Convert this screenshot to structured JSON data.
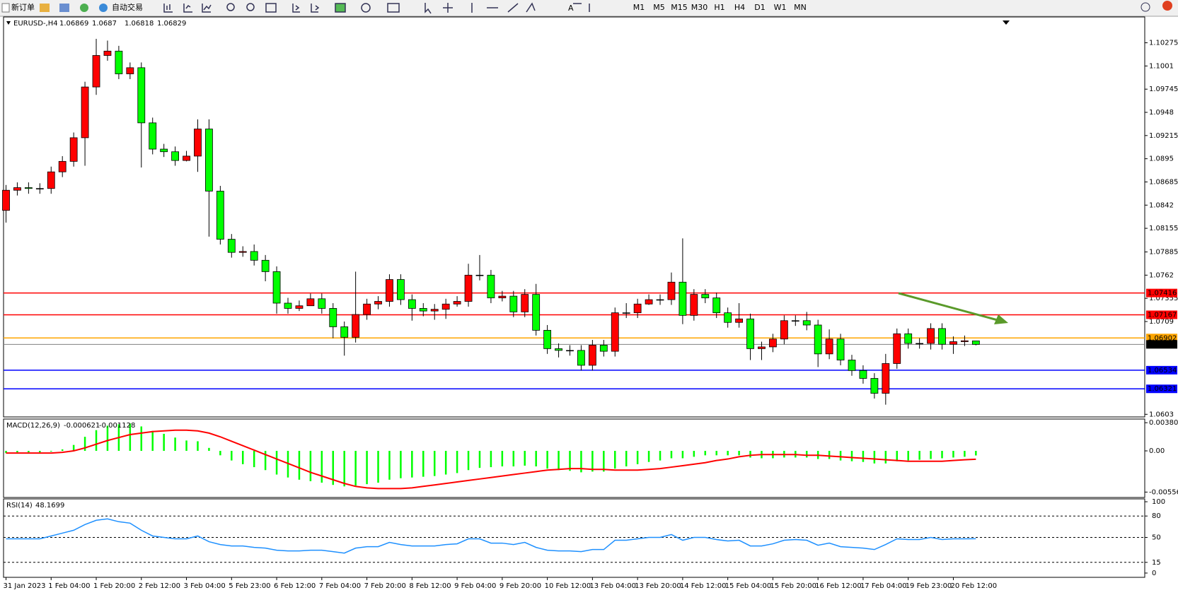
{
  "toolbar": {
    "buttons": [
      "新订单",
      "自动交易"
    ],
    "timeframes": [
      "M1",
      "M5",
      "M15",
      "M30",
      "H1",
      "H4",
      "D1",
      "W1",
      "MN"
    ]
  },
  "chart_data": [
    {
      "type": "candlestick",
      "title": "EURUSD-,H4",
      "categories": [
        "31 Jan 2023",
        null,
        null,
        null,
        "1 Feb 04:00",
        null,
        null,
        null,
        "1 Feb 20:00",
        null,
        null,
        null,
        "2 Feb 12:00",
        null,
        null,
        null,
        "3 Feb 04:00",
        null,
        null,
        null,
        "5 Feb 23:00",
        null,
        null,
        null,
        "6 Feb 12:00",
        null,
        null,
        null,
        "7 Feb 04:00",
        null,
        null,
        null,
        "7 Feb 20:00",
        null,
        null,
        null,
        "8 Feb 12:00",
        null,
        null,
        null,
        "9 Feb 04:00",
        null,
        null,
        null,
        "9 Feb 20:00",
        null,
        null,
        null,
        "10 Feb 12:00",
        null,
        null,
        null,
        "13 Feb 04:00",
        null,
        null,
        null,
        "13 Feb 20:00",
        null,
        null,
        null,
        "14 Feb 12:00",
        null,
        null,
        null,
        "15 Feb 04:00",
        null,
        null,
        null,
        "15 Feb 20:00",
        null,
        null,
        null,
        "16 Feb 12:00",
        null,
        null,
        null,
        "17 Feb 04:00",
        null,
        null,
        null,
        "19 Feb 23:00",
        null,
        null,
        null,
        "20 Feb 12:00",
        null,
        null
      ],
      "open": [
        1.0836,
        1.0859,
        1.0862,
        1.0861,
        1.0861,
        1.088,
        1.0892,
        1.0919,
        1.0977,
        1.1013,
        1.1018,
        1.0992,
        1.0999,
        1.0936,
        1.0906,
        1.0903,
        1.0893,
        1.0898,
        1.0929,
        1.0858,
        1.0803,
        1.0788,
        1.0789,
        1.0779,
        1.0766,
        1.073,
        1.0724,
        1.0727,
        1.0735,
        1.0724,
        1.0703,
        1.0691,
        1.0717,
        1.0729,
        1.0732,
        1.0757,
        1.0734,
        1.0724,
        1.0721,
        1.0723,
        1.0729,
        1.0732,
        1.0762,
        1.0762,
        1.0736,
        1.0738,
        1.072,
        1.074,
        1.0699,
        1.0678,
        1.0676,
        1.0676,
        1.0659,
        1.0682,
        1.0675,
        1.0719,
        1.0719,
        1.0729,
        1.0734,
        1.0734,
        1.0754,
        1.0716,
        1.074,
        1.0736,
        1.0719,
        1.0708,
        1.0712,
        1.0678,
        1.068,
        1.0689,
        1.071,
        1.071,
        1.0705,
        1.0672,
        1.0689,
        1.0665,
        1.0653,
        1.0644,
        1.0627,
        1.0661,
        1.0695,
        1.0684,
        1.0684,
        1.0701,
        1.0683,
        1.0686,
        1.06869
      ],
      "high": [
        1.0865,
        1.0868,
        1.0868,
        1.0867,
        1.0886,
        1.0898,
        1.0925,
        1.0983,
        1.1032,
        1.103,
        1.1024,
        1.1005,
        1.1005,
        1.0942,
        1.0912,
        1.0909,
        1.0904,
        1.094,
        1.094,
        1.0864,
        1.0809,
        1.0795,
        1.0797,
        1.0785,
        1.0772,
        1.0736,
        1.0733,
        1.0741,
        1.0741,
        1.073,
        1.0709,
        1.0766,
        1.0735,
        1.0738,
        1.0763,
        1.0763,
        1.074,
        1.073,
        1.0729,
        1.0735,
        1.0738,
        1.0775,
        1.0785,
        1.0768,
        1.0744,
        1.0744,
        1.0746,
        1.0752,
        1.0705,
        1.0684,
        1.0682,
        1.0682,
        1.0688,
        1.0688,
        1.0725,
        1.073,
        1.0735,
        1.074,
        1.074,
        1.0765,
        1.0804,
        1.0746,
        1.0746,
        1.0742,
        1.0725,
        1.073,
        1.0718,
        1.0686,
        1.0695,
        1.0716,
        1.0716,
        1.072,
        1.0711,
        1.07,
        1.0695,
        1.0671,
        1.0659,
        1.065,
        1.0672,
        1.0701,
        1.0701,
        1.069,
        1.0707,
        1.0707,
        1.0692,
        1.0693,
        1.0687
      ],
      "low": [
        1.0822,
        1.0853,
        1.0855,
        1.0855,
        1.0855,
        1.0874,
        1.0886,
        1.0887,
        1.0968,
        1.1007,
        1.0986,
        1.0986,
        1.0885,
        1.09,
        1.0897,
        1.0887,
        1.0892,
        1.088,
        1.0806,
        1.0797,
        1.0782,
        1.0783,
        1.0773,
        1.0755,
        1.0718,
        1.0718,
        1.0721,
        1.0729,
        1.0718,
        1.069,
        1.067,
        1.0685,
        1.0711,
        1.0723,
        1.0726,
        1.0728,
        1.071,
        1.0715,
        1.0711,
        1.0712,
        1.0726,
        1.0726,
        1.0756,
        1.073,
        1.0732,
        1.0714,
        1.0714,
        1.0693,
        1.0672,
        1.0668,
        1.067,
        1.0653,
        1.0653,
        1.0669,
        1.0669,
        1.0713,
        1.0713,
        1.0728,
        1.0728,
        1.0728,
        1.0706,
        1.071,
        1.073,
        1.0713,
        1.0702,
        1.0702,
        1.0665,
        1.0665,
        1.0674,
        1.0683,
        1.0704,
        1.0699,
        1.0657,
        1.0666,
        1.0659,
        1.0647,
        1.0638,
        1.0621,
        1.0614,
        1.0655,
        1.0678,
        1.0678,
        1.0677,
        1.0677,
        1.0672,
        1.0681,
        1.06818
      ],
      "close": [
        1.0859,
        1.0862,
        1.0861,
        1.0861,
        1.088,
        1.0892,
        1.0919,
        1.0977,
        1.1013,
        1.1018,
        1.0992,
        1.0999,
        1.0936,
        1.0906,
        1.0903,
        1.0893,
        1.0898,
        1.0929,
        1.0858,
        1.0803,
        1.0788,
        1.0789,
        1.0779,
        1.0766,
        1.073,
        1.0724,
        1.0727,
        1.0735,
        1.0724,
        1.0703,
        1.0691,
        1.0717,
        1.0729,
        1.0732,
        1.0757,
        1.0734,
        1.0724,
        1.0721,
        1.0723,
        1.0729,
        1.0732,
        1.0762,
        1.0762,
        1.0736,
        1.0738,
        1.072,
        1.074,
        1.0699,
        1.0678,
        1.0676,
        1.0676,
        1.0659,
        1.0682,
        1.0675,
        1.0719,
        1.0719,
        1.0729,
        1.0734,
        1.0734,
        1.0754,
        1.0716,
        1.074,
        1.0736,
        1.0719,
        1.0708,
        1.0712,
        1.0678,
        1.068,
        1.0689,
        1.071,
        1.071,
        1.0705,
        1.0672,
        1.0689,
        1.0665,
        1.0653,
        1.0644,
        1.0627,
        1.0661,
        1.0695,
        1.0684,
        1.0684,
        1.0701,
        1.0683,
        1.0686,
        1.0687,
        1.06829
      ],
      "up_color": "#ff0000",
      "down_color": "#00ff00",
      "ylim": [
        1.06,
        1.1057
      ],
      "yticks": [
        1.10275,
        1.1001,
        1.09745,
        1.0948,
        1.09215,
        1.0895,
        1.08685,
        1.0842,
        1.08155,
        1.07885,
        1.0762,
        1.07355,
        1.0709,
        1.0603
      ],
      "levels": [
        {
          "value": 1.07416,
          "color": "#ff0000"
        },
        {
          "value": 1.07167,
          "color": "#ff0000"
        },
        {
          "value": 1.06902,
          "color": "#ffa500"
        },
        {
          "value": 1.06534,
          "color": "#0000ff"
        },
        {
          "value": 1.06321,
          "color": "#0000ff"
        }
      ],
      "last_color": "#808080"
    },
    {
      "type": "macd",
      "title": "MACD(12,26,9)",
      "series": [
        {
          "color": "#00ff00",
          "values": [
            -0.0003,
            -0.0002,
            -0.0002,
            -0.0002,
            -0.0001,
            0.0002,
            0.0008,
            0.0019,
            0.0028,
            0.0034,
            0.0036,
            0.0037,
            0.0033,
            0.0027,
            0.0023,
            0.0018,
            0.0014,
            0.0013,
            0.0004,
            -0.0006,
            -0.0013,
            -0.0018,
            -0.0022,
            -0.0026,
            -0.0032,
            -0.0036,
            -0.0039,
            -0.0041,
            -0.0043,
            -0.0046,
            -0.0048,
            -0.0047,
            -0.0045,
            -0.0043,
            -0.0039,
            -0.0037,
            -0.0036,
            -0.0035,
            -0.0034,
            -0.0032,
            -0.003,
            -0.0026,
            -0.0023,
            -0.0022,
            -0.0021,
            -0.0021,
            -0.002,
            -0.0021,
            -0.0024,
            -0.0026,
            -0.0027,
            -0.0029,
            -0.0028,
            -0.0028,
            -0.0024,
            -0.0021,
            -0.0018,
            -0.0015,
            -0.0013,
            -0.001,
            -0.001,
            -0.0008,
            -0.0006,
            -0.0006,
            -0.0006,
            -0.0006,
            -0.0009,
            -0.001,
            -0.001,
            -0.0009,
            -0.0009,
            -0.0009,
            -0.0011,
            -0.0011,
            -0.0013,
            -0.0014,
            -0.0015,
            -0.0017,
            -0.0017,
            -0.0014,
            -0.0013,
            -0.0012,
            -0.0011,
            -0.001,
            -0.0009,
            -0.0008,
            -0.000621
          ]
        },
        {
          "color": "#ff0000",
          "values": [
            -0.0003,
            -0.0003,
            -0.0003,
            -0.0003,
            -0.0003,
            -0.0002,
            0.0,
            0.0004,
            0.0009,
            0.0014,
            0.0018,
            0.0022,
            0.0024,
            0.0026,
            0.0027,
            0.0028,
            0.0028,
            0.0027,
            0.0024,
            0.0019,
            0.0013,
            0.0007,
            0.0001,
            -0.0005,
            -0.0011,
            -0.0017,
            -0.0023,
            -0.0029,
            -0.0034,
            -0.0039,
            -0.0044,
            -0.0048,
            -0.005,
            -0.0051,
            -0.0051,
            -0.0051,
            -0.005,
            -0.0048,
            -0.0046,
            -0.0044,
            -0.0042,
            -0.004,
            -0.0038,
            -0.0036,
            -0.0034,
            -0.0032,
            -0.003,
            -0.0028,
            -0.0026,
            -0.0025,
            -0.0024,
            -0.0024,
            -0.0025,
            -0.0025,
            -0.0026,
            -0.0026,
            -0.0026,
            -0.0025,
            -0.0024,
            -0.0022,
            -0.002,
            -0.0018,
            -0.0016,
            -0.0013,
            -0.0011,
            -0.0008,
            -0.0006,
            -0.0005,
            -0.0005,
            -0.0005,
            -0.0005,
            -0.0006,
            -0.0006,
            -0.0007,
            -0.0008,
            -0.0009,
            -0.001,
            -0.0011,
            -0.0012,
            -0.0013,
            -0.0014,
            -0.0014,
            -0.0014,
            -0.0014,
            -0.0013,
            -0.0012,
            -0.001128
          ]
        }
      ],
      "ylim": [
        -0.0063,
        0.0043
      ],
      "yticks": [
        0.003805,
        {
          "value": 0,
          "label": "0.00"
        },
        -0.005569
      ]
    },
    {
      "type": "line",
      "title": "RSI(14)",
      "color": "#1e90ff",
      "values": [
        48,
        48,
        48,
        48,
        52,
        56,
        60,
        68,
        74,
        76,
        72,
        70,
        60,
        52,
        50,
        48,
        48,
        52,
        44,
        40,
        38,
        38,
        36,
        35,
        32,
        31,
        31,
        32,
        32,
        30,
        28,
        35,
        37,
        37,
        43,
        40,
        38,
        38,
        38,
        40,
        41,
        48,
        48,
        42,
        42,
        40,
        43,
        36,
        32,
        31,
        31,
        30,
        33,
        33,
        46,
        46,
        48,
        50,
        50,
        54,
        46,
        50,
        50,
        47,
        45,
        46,
        38,
        38,
        41,
        46,
        47,
        46,
        39,
        42,
        37,
        36,
        35,
        33,
        40,
        48,
        47,
        47,
        50,
        47,
        48,
        48,
        48.1699
      ],
      "levels": [
        80,
        50,
        15
      ],
      "ylim": [
        -6,
        104
      ],
      "yticks": [
        100,
        80,
        50,
        15,
        0
      ]
    }
  ]
}
